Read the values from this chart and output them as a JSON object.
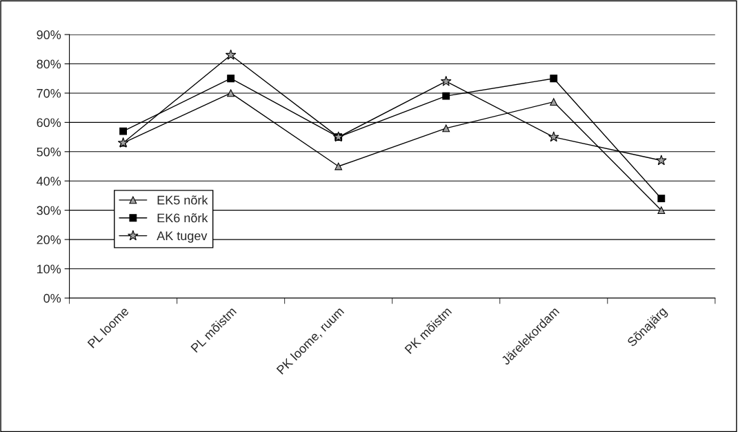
{
  "chart_data": {
    "type": "line",
    "categories": [
      "PL loome",
      "PL mõistm",
      "PK loome, ruum",
      "PK mõistm",
      "Järelekordam",
      "Sõnajärg"
    ],
    "series": [
      {
        "name": "EK5 nõrk",
        "color": "#a0a0a0",
        "marker": "triangle",
        "values": [
          53,
          70,
          45,
          58,
          67,
          30
        ]
      },
      {
        "name": "EK6 nõrk",
        "color": "#000000",
        "marker": "square",
        "values": [
          57,
          75,
          55,
          69,
          75,
          34
        ]
      },
      {
        "name": "AK tugev",
        "color": "#a0a0a0",
        "marker": "star",
        "values": [
          53,
          83,
          55,
          74,
          55,
          47
        ]
      }
    ],
    "ylim": [
      0,
      90
    ],
    "yticks": [
      {
        "value": 0,
        "label": "0%"
      },
      {
        "value": 10,
        "label": "10%"
      },
      {
        "value": 20,
        "label": "20%"
      },
      {
        "value": 30,
        "label": "30%"
      },
      {
        "value": 40,
        "label": "40%"
      },
      {
        "value": 50,
        "label": "50%"
      },
      {
        "value": 60,
        "label": "60%"
      },
      {
        "value": 70,
        "label": "70%"
      },
      {
        "value": 80,
        "label": "80%"
      },
      {
        "value": 90,
        "label": "90%"
      }
    ],
    "grid": "y",
    "legend": "left",
    "line_style": "solid"
  }
}
